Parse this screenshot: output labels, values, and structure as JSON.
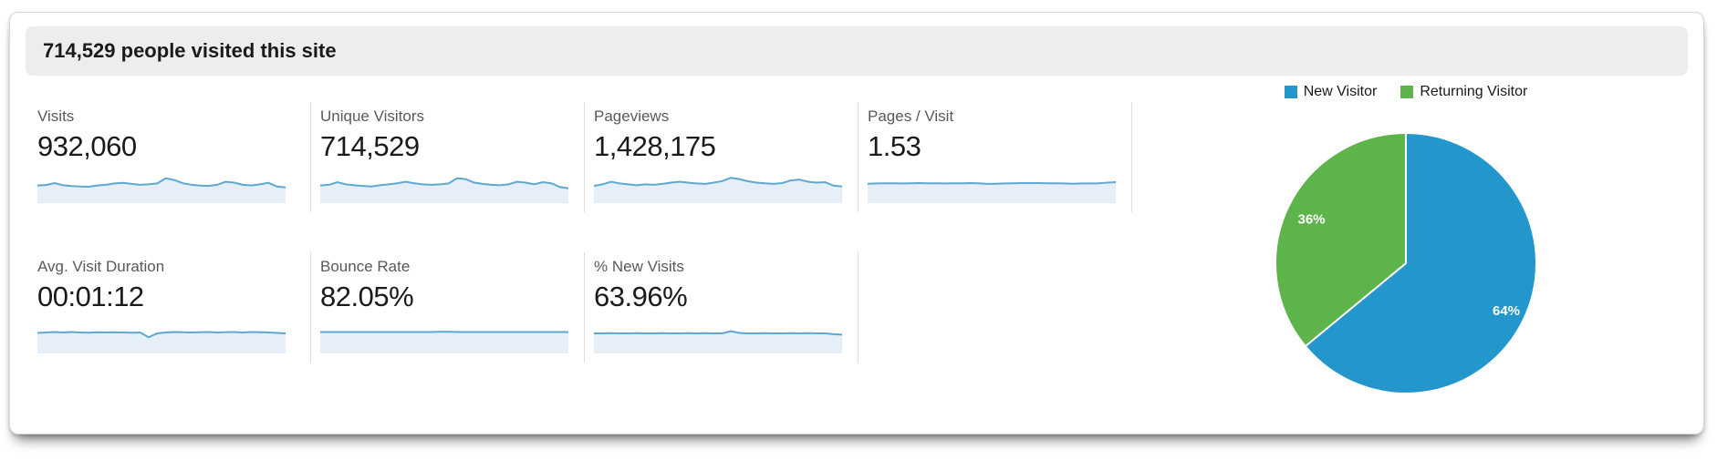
{
  "header": {
    "title": "714,529 people visited this site"
  },
  "metrics": {
    "cards": [
      {
        "label": "Visits",
        "value": "932,060"
      },
      {
        "label": "Unique Visitors",
        "value": "714,529"
      },
      {
        "label": "Pageviews",
        "value": "1,428,175"
      },
      {
        "label": "Pages / Visit",
        "value": "1.53"
      },
      {
        "label": "Avg. Visit Duration",
        "value": "00:01:12"
      },
      {
        "label": "Bounce Rate",
        "value": "82.05%"
      },
      {
        "label": "% New Visits",
        "value": "63.96%"
      }
    ]
  },
  "legend": {
    "items": [
      {
        "label": "New Visitor",
        "color": "#2397cb"
      },
      {
        "label": "Returning Visitor",
        "color": "#5db44a"
      }
    ]
  },
  "chart_data": [
    {
      "type": "line",
      "title": "Metric trend sparklines (normalized 0-1, estimated from pixels)",
      "grid": false,
      "ylim": [
        0,
        1
      ],
      "series": [
        {
          "name": "Visits",
          "values": [
            0.35,
            0.37,
            0.46,
            0.36,
            0.32,
            0.3,
            0.29,
            0.35,
            0.38,
            0.44,
            0.47,
            0.42,
            0.38,
            0.4,
            0.44,
            0.68,
            0.6,
            0.45,
            0.38,
            0.34,
            0.33,
            0.38,
            0.52,
            0.48,
            0.38,
            0.35,
            0.4,
            0.47,
            0.3,
            0.26
          ]
        },
        {
          "name": "Unique Visitors",
          "values": [
            0.35,
            0.38,
            0.5,
            0.4,
            0.36,
            0.33,
            0.3,
            0.36,
            0.4,
            0.45,
            0.52,
            0.45,
            0.4,
            0.38,
            0.4,
            0.44,
            0.68,
            0.64,
            0.48,
            0.42,
            0.38,
            0.36,
            0.4,
            0.52,
            0.48,
            0.4,
            0.5,
            0.45,
            0.28,
            0.22
          ]
        },
        {
          "name": "Pageviews",
          "values": [
            0.33,
            0.4,
            0.52,
            0.44,
            0.4,
            0.36,
            0.4,
            0.38,
            0.42,
            0.48,
            0.52,
            0.48,
            0.44,
            0.42,
            0.48,
            0.55,
            0.7,
            0.64,
            0.54,
            0.48,
            0.45,
            0.42,
            0.46,
            0.58,
            0.62,
            0.52,
            0.48,
            0.5,
            0.34,
            0.3
          ]
        },
        {
          "name": "Pages / Visit",
          "values": [
            0.43,
            0.44,
            0.45,
            0.45,
            0.44,
            0.45,
            0.46,
            0.45,
            0.45,
            0.44,
            0.45,
            0.45,
            0.46,
            0.45,
            0.42,
            0.43,
            0.44,
            0.45,
            0.46,
            0.46,
            0.46,
            0.45,
            0.45,
            0.44,
            0.43,
            0.44,
            0.44,
            0.45,
            0.48,
            0.5
          ]
        },
        {
          "name": "Avg. Visit Duration",
          "values": [
            0.48,
            0.5,
            0.52,
            0.5,
            0.52,
            0.5,
            0.49,
            0.51,
            0.5,
            0.51,
            0.5,
            0.49,
            0.5,
            0.28,
            0.46,
            0.5,
            0.52,
            0.51,
            0.5,
            0.51,
            0.52,
            0.5,
            0.51,
            0.52,
            0.5,
            0.52,
            0.51,
            0.5,
            0.48,
            0.46
          ]
        },
        {
          "name": "Bounce Rate",
          "values": [
            0.52,
            0.52,
            0.52,
            0.52,
            0.52,
            0.52,
            0.52,
            0.52,
            0.52,
            0.52,
            0.52,
            0.52,
            0.52,
            0.52,
            0.53,
            0.53,
            0.52,
            0.52,
            0.52,
            0.52,
            0.52,
            0.52,
            0.52,
            0.52,
            0.52,
            0.52,
            0.52,
            0.52,
            0.52,
            0.52
          ]
        },
        {
          "name": "% New Visits",
          "values": [
            0.46,
            0.46,
            0.47,
            0.46,
            0.46,
            0.47,
            0.46,
            0.46,
            0.47,
            0.46,
            0.46,
            0.47,
            0.46,
            0.47,
            0.46,
            0.46,
            0.56,
            0.48,
            0.46,
            0.46,
            0.47,
            0.46,
            0.46,
            0.47,
            0.46,
            0.47,
            0.46,
            0.46,
            0.42,
            0.4
          ]
        }
      ]
    },
    {
      "type": "pie",
      "title": "New vs Returning Visitors",
      "labels": [
        "New Visitor",
        "Returning Visitor"
      ],
      "values": [
        64,
        36
      ],
      "unit": "%",
      "slice_labels": [
        "64%",
        "36%"
      ],
      "colors": [
        "#2397cb",
        "#5db44a"
      ],
      "legend_position": "top",
      "start_angle_deg": -90,
      "direction": "clockwise"
    }
  ],
  "colors": {
    "header_bg": "#ededed",
    "divider": "#dcdcdc",
    "spark_line": "#5fa8d0",
    "spark_fill": "#e6eff7",
    "label_text": "#58595b",
    "value_text": "#1a1a1a"
  }
}
